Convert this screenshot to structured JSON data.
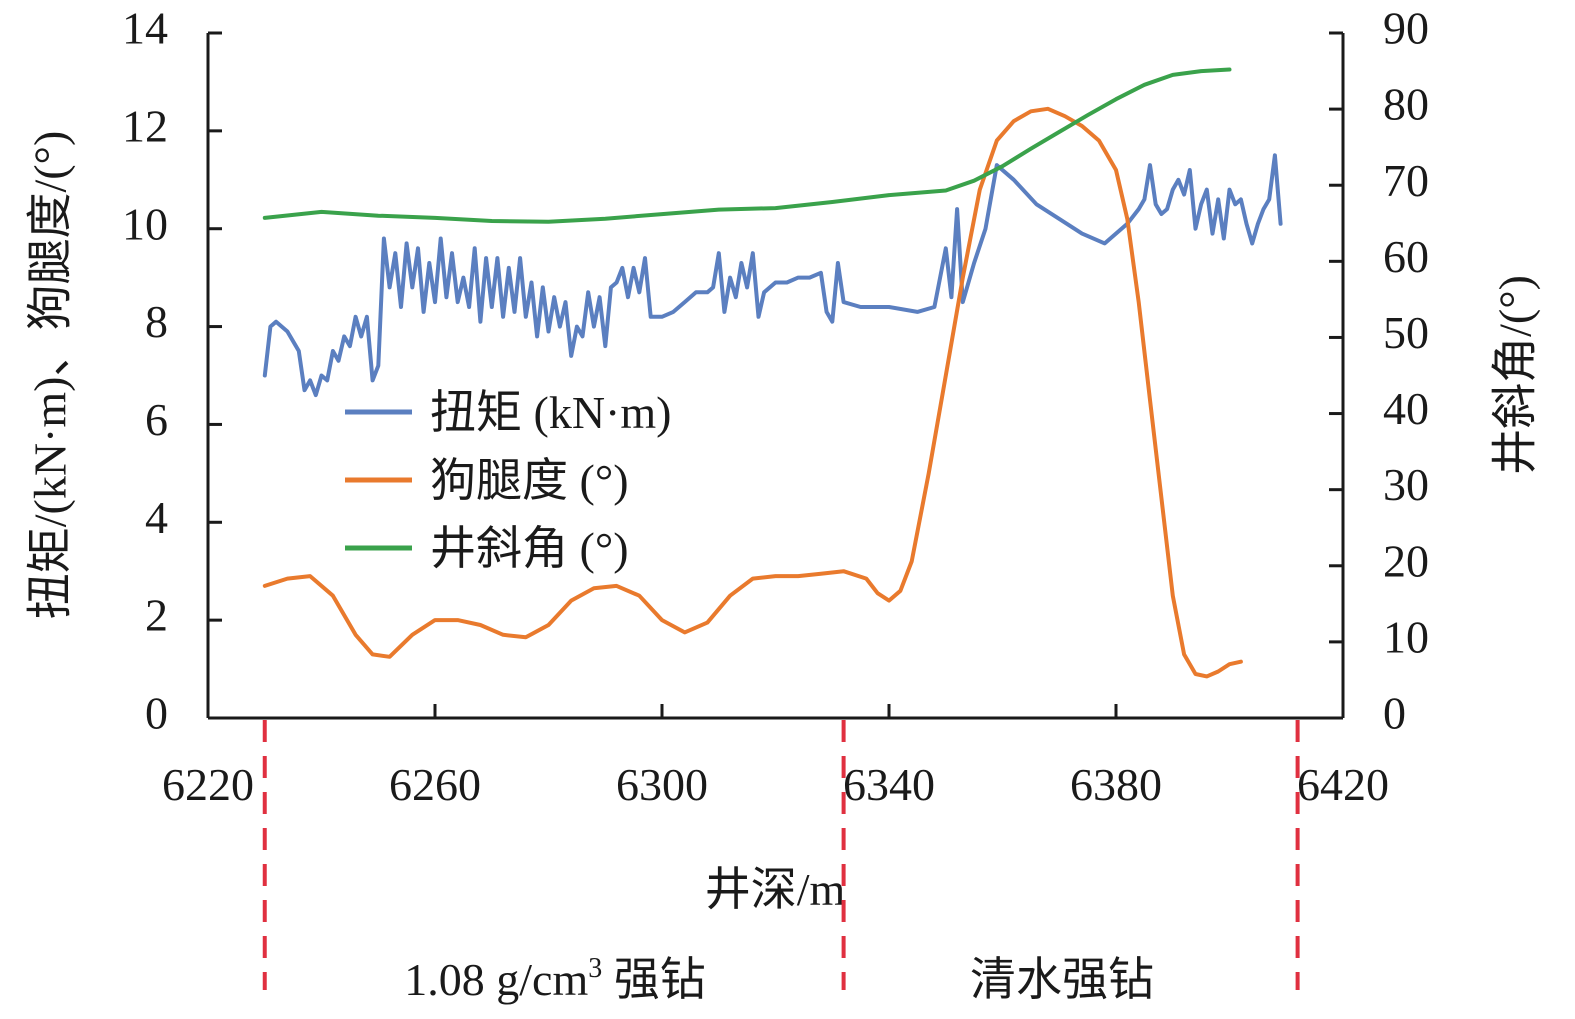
{
  "chart_data": {
    "type": "line",
    "x_axis": {
      "label": "井深/m",
      "range": [
        6220,
        6420
      ],
      "ticks": [
        6220,
        6260,
        6300,
        6340,
        6380,
        6420
      ]
    },
    "y_axis_left": {
      "label": "扭矩/(kN·m)、狗腿度/(°)",
      "range": [
        0,
        14
      ],
      "ticks": [
        0,
        2,
        4,
        6,
        8,
        10,
        12,
        14
      ]
    },
    "y_axis_right": {
      "label": "井斜角/(°)",
      "range": [
        0,
        90
      ],
      "ticks": [
        0,
        10,
        20,
        30,
        40,
        50,
        60,
        70,
        80,
        90
      ]
    },
    "legend_position": "center-left",
    "grid": false,
    "series": [
      {
        "name": "扭矩 (kN·m)",
        "axis": "left",
        "color": "#5b7fc0",
        "points": [
          [
            6230,
            7.0
          ],
          [
            6231,
            8.0
          ],
          [
            6232,
            8.1
          ],
          [
            6234,
            7.9
          ],
          [
            6236,
            7.5
          ],
          [
            6237,
            6.7
          ],
          [
            6238,
            6.9
          ],
          [
            6239,
            6.6
          ],
          [
            6240,
            7.0
          ],
          [
            6241,
            6.9
          ],
          [
            6242,
            7.5
          ],
          [
            6243,
            7.3
          ],
          [
            6244,
            7.8
          ],
          [
            6245,
            7.6
          ],
          [
            6246,
            8.2
          ],
          [
            6247,
            7.8
          ],
          [
            6248,
            8.2
          ],
          [
            6249,
            6.9
          ],
          [
            6250,
            7.2
          ],
          [
            6251,
            9.8
          ],
          [
            6252,
            8.8
          ],
          [
            6253,
            9.5
          ],
          [
            6254,
            8.4
          ],
          [
            6255,
            9.7
          ],
          [
            6256,
            8.8
          ],
          [
            6257,
            9.6
          ],
          [
            6258,
            8.3
          ],
          [
            6259,
            9.3
          ],
          [
            6260,
            8.5
          ],
          [
            6261,
            9.8
          ],
          [
            6262,
            8.6
          ],
          [
            6263,
            9.5
          ],
          [
            6264,
            8.5
          ],
          [
            6265,
            9.0
          ],
          [
            6266,
            8.4
          ],
          [
            6267,
            9.6
          ],
          [
            6268,
            8.1
          ],
          [
            6269,
            9.4
          ],
          [
            6270,
            8.4
          ],
          [
            6271,
            9.4
          ],
          [
            6272,
            8.2
          ],
          [
            6273,
            9.2
          ],
          [
            6274,
            8.3
          ],
          [
            6275,
            9.4
          ],
          [
            6276,
            8.2
          ],
          [
            6277,
            8.9
          ],
          [
            6278,
            7.8
          ],
          [
            6279,
            8.8
          ],
          [
            6280,
            7.9
          ],
          [
            6281,
            8.6
          ],
          [
            6282,
            8.0
          ],
          [
            6283,
            8.5
          ],
          [
            6284,
            7.4
          ],
          [
            6285,
            8.0
          ],
          [
            6286,
            7.8
          ],
          [
            6287,
            8.7
          ],
          [
            6288,
            8.0
          ],
          [
            6289,
            8.6
          ],
          [
            6290,
            7.6
          ],
          [
            6291,
            8.8
          ],
          [
            6292,
            8.9
          ],
          [
            6293,
            9.2
          ],
          [
            6294,
            8.6
          ],
          [
            6295,
            9.2
          ],
          [
            6296,
            8.7
          ],
          [
            6297,
            9.4
          ],
          [
            6298,
            8.2
          ],
          [
            6300,
            8.2
          ],
          [
            6302,
            8.3
          ],
          [
            6304,
            8.5
          ],
          [
            6306,
            8.7
          ],
          [
            6308,
            8.7
          ],
          [
            6309,
            8.8
          ],
          [
            6310,
            9.5
          ],
          [
            6311,
            8.3
          ],
          [
            6312,
            9.0
          ],
          [
            6313,
            8.6
          ],
          [
            6314,
            9.3
          ],
          [
            6315,
            8.8
          ],
          [
            6316,
            9.5
          ],
          [
            6317,
            8.2
          ],
          [
            6318,
            8.7
          ],
          [
            6320,
            8.9
          ],
          [
            6322,
            8.9
          ],
          [
            6324,
            9.0
          ],
          [
            6326,
            9.0
          ],
          [
            6328,
            9.1
          ],
          [
            6329,
            8.3
          ],
          [
            6330,
            8.1
          ],
          [
            6331,
            9.3
          ],
          [
            6332,
            8.5
          ],
          [
            6335,
            8.4
          ],
          [
            6340,
            8.4
          ],
          [
            6345,
            8.3
          ],
          [
            6348,
            8.4
          ],
          [
            6350,
            9.6
          ],
          [
            6351,
            8.6
          ],
          [
            6352,
            10.4
          ],
          [
            6353,
            8.5
          ],
          [
            6355,
            9.3
          ],
          [
            6357,
            10.0
          ],
          [
            6359,
            11.3
          ],
          [
            6362,
            11.0
          ],
          [
            6366,
            10.5
          ],
          [
            6370,
            10.2
          ],
          [
            6374,
            9.9
          ],
          [
            6378,
            9.7
          ],
          [
            6382,
            10.1
          ],
          [
            6384,
            10.4
          ],
          [
            6385,
            10.6
          ],
          [
            6386,
            11.3
          ],
          [
            6387,
            10.5
          ],
          [
            6388,
            10.3
          ],
          [
            6389,
            10.4
          ],
          [
            6390,
            10.8
          ],
          [
            6391,
            11.0
          ],
          [
            6392,
            10.7
          ],
          [
            6393,
            11.2
          ],
          [
            6394,
            10.0
          ],
          [
            6395,
            10.5
          ],
          [
            6396,
            10.8
          ],
          [
            6397,
            9.9
          ],
          [
            6398,
            10.6
          ],
          [
            6399,
            9.8
          ],
          [
            6400,
            10.8
          ],
          [
            6401,
            10.5
          ],
          [
            6402,
            10.6
          ],
          [
            6403,
            10.1
          ],
          [
            6404,
            9.7
          ],
          [
            6405,
            10.1
          ],
          [
            6406,
            10.4
          ],
          [
            6407,
            10.6
          ],
          [
            6408,
            11.5
          ],
          [
            6409,
            10.1
          ]
        ]
      },
      {
        "name": "狗腿度 (°)",
        "axis": "left",
        "color": "#e97a2d",
        "points": [
          [
            6230,
            2.7
          ],
          [
            6234,
            2.85
          ],
          [
            6238,
            2.9
          ],
          [
            6242,
            2.5
          ],
          [
            6246,
            1.7
          ],
          [
            6249,
            1.3
          ],
          [
            6252,
            1.25
          ],
          [
            6256,
            1.7
          ],
          [
            6260,
            2.0
          ],
          [
            6264,
            2.0
          ],
          [
            6268,
            1.9
          ],
          [
            6272,
            1.7
          ],
          [
            6276,
            1.65
          ],
          [
            6280,
            1.9
          ],
          [
            6284,
            2.4
          ],
          [
            6288,
            2.65
          ],
          [
            6292,
            2.7
          ],
          [
            6296,
            2.5
          ],
          [
            6300,
            2.0
          ],
          [
            6304,
            1.75
          ],
          [
            6308,
            1.95
          ],
          [
            6312,
            2.5
          ],
          [
            6316,
            2.85
          ],
          [
            6320,
            2.9
          ],
          [
            6324,
            2.9
          ],
          [
            6328,
            2.95
          ],
          [
            6332,
            3.0
          ],
          [
            6336,
            2.85
          ],
          [
            6338,
            2.55
          ],
          [
            6340,
            2.4
          ],
          [
            6342,
            2.6
          ],
          [
            6344,
            3.2
          ],
          [
            6347,
            5.0
          ],
          [
            6350,
            7.0
          ],
          [
            6353,
            9.0
          ],
          [
            6356,
            10.8
          ],
          [
            6359,
            11.8
          ],
          [
            6362,
            12.2
          ],
          [
            6365,
            12.4
          ],
          [
            6368,
            12.45
          ],
          [
            6371,
            12.3
          ],
          [
            6374,
            12.1
          ],
          [
            6377,
            11.8
          ],
          [
            6380,
            11.2
          ],
          [
            6382,
            10.2
          ],
          [
            6384,
            8.5
          ],
          [
            6386,
            6.5
          ],
          [
            6388,
            4.5
          ],
          [
            6390,
            2.5
          ],
          [
            6392,
            1.3
          ],
          [
            6394,
            0.9
          ],
          [
            6396,
            0.85
          ],
          [
            6398,
            0.95
          ],
          [
            6400,
            1.1
          ],
          [
            6402,
            1.15
          ]
        ]
      },
      {
        "name": "井斜角 (°)",
        "axis": "right",
        "color": "#3aa24b",
        "points": [
          [
            6230,
            65.7
          ],
          [
            6240,
            66.5
          ],
          [
            6250,
            66.0
          ],
          [
            6260,
            65.7
          ],
          [
            6270,
            65.3
          ],
          [
            6280,
            65.2
          ],
          [
            6290,
            65.6
          ],
          [
            6300,
            66.2
          ],
          [
            6310,
            66.8
          ],
          [
            6320,
            67.0
          ],
          [
            6330,
            67.8
          ],
          [
            6340,
            68.7
          ],
          [
            6350,
            69.3
          ],
          [
            6355,
            70.6
          ],
          [
            6360,
            72.5
          ],
          [
            6365,
            74.8
          ],
          [
            6370,
            77.0
          ],
          [
            6375,
            79.2
          ],
          [
            6380,
            81.3
          ],
          [
            6385,
            83.2
          ],
          [
            6390,
            84.5
          ],
          [
            6395,
            85.0
          ],
          [
            6400,
            85.2
          ]
        ]
      }
    ],
    "annotations": {
      "divider_depths": [
        6230,
        6332,
        6412
      ],
      "regions": [
        {
          "label": "1.08 g/cm",
          "superscript": "3",
          "suffix": " 强钻"
        },
        {
          "label": "清水强钻"
        }
      ]
    }
  }
}
